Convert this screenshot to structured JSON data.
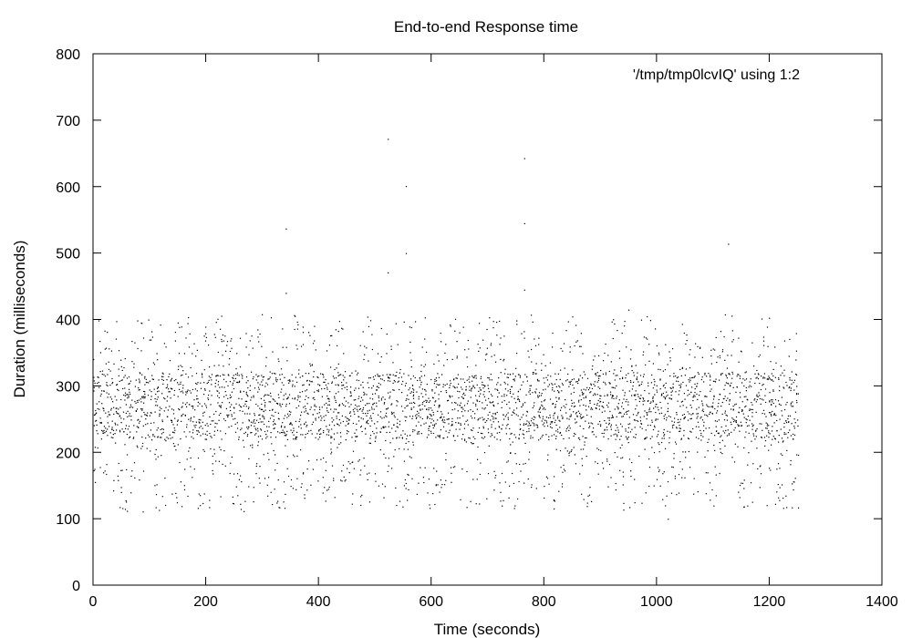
{
  "chart_data": {
    "type": "scatter",
    "title": "End-to-end Response time",
    "xlabel": "Time (seconds)",
    "ylabel": "Duration (milliseconds)",
    "xlim": [
      0,
      1400
    ],
    "ylim": [
      0,
      800
    ],
    "xticks": [
      0,
      200,
      400,
      600,
      800,
      1000,
      1200,
      1400
    ],
    "yticks": [
      0,
      100,
      200,
      300,
      400,
      500,
      600,
      700,
      800
    ],
    "legend": "top-right",
    "grid": false,
    "series": [
      {
        "name": "'/tmp/tmp0lcvIQ' using 1:2",
        "marker": "dot",
        "color": "#000000",
        "x_range": [
          0,
          1250
        ],
        "bulk_y_range": [
          110,
          410
        ],
        "dense_y_range": [
          220,
          320
        ],
        "outliers": [
          {
            "x": 523,
            "y": 672
          },
          {
            "x": 765,
            "y": 643
          },
          {
            "x": 555,
            "y": 601
          },
          {
            "x": 765,
            "y": 545
          },
          {
            "x": 342,
            "y": 537
          },
          {
            "x": 1127,
            "y": 514
          },
          {
            "x": 555,
            "y": 500
          },
          {
            "x": 523,
            "y": 471
          },
          {
            "x": 765,
            "y": 445
          },
          {
            "x": 342,
            "y": 440
          },
          {
            "x": 950,
            "y": 415
          },
          {
            "x": 60,
            "y": 112
          },
          {
            "x": 88,
            "y": 111
          },
          {
            "x": 1020,
            "y": 100
          },
          {
            "x": 490,
            "y": 126
          }
        ]
      }
    ]
  }
}
